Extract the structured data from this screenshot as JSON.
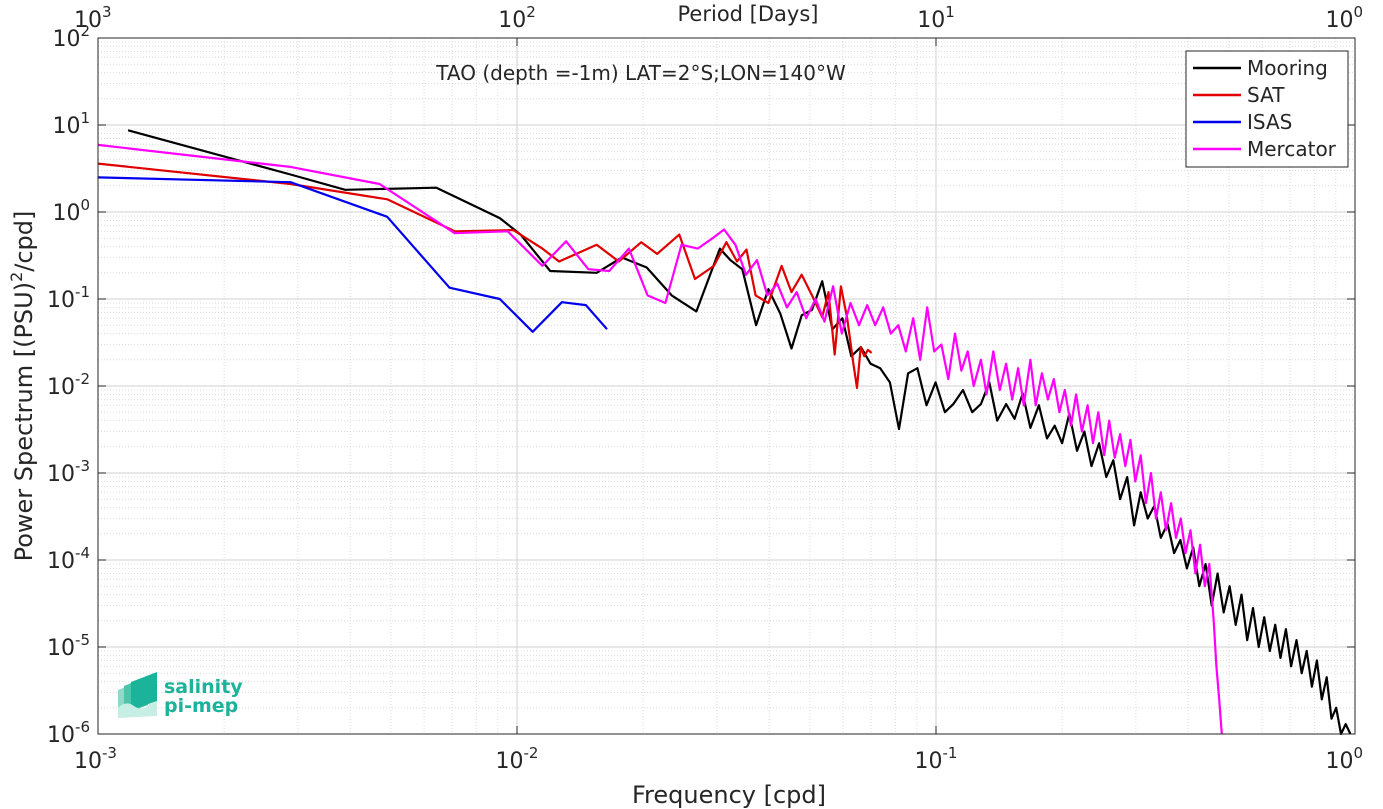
{
  "chart_data": {
    "type": "line",
    "title": "TAO (depth =-1m) LAT=2°S;LON=140°W",
    "xlabel": "Frequency [cpd]",
    "ylabel": "Power Spectrum [(PSU)²/cpd]",
    "ylabel_parts": {
      "pre": "Power Spectrum [(PSU)",
      "sup": "2",
      "post": "/cpd]"
    },
    "top_xlabel": "Period [Days]",
    "xscale": "log",
    "yscale": "log",
    "xlim": [
      0.001,
      1
    ],
    "ylim": [
      1e-06,
      100
    ],
    "grid": true,
    "legend_position": "top-right",
    "x_ticks": [
      {
        "value": 0.001,
        "base": "10",
        "exp": "-3"
      },
      {
        "value": 0.01,
        "base": "10",
        "exp": "-2"
      },
      {
        "value": 0.1,
        "base": "10",
        "exp": "-1"
      },
      {
        "value": 1,
        "base": "10",
        "exp": "0"
      }
    ],
    "top_ticks": [
      {
        "freq": 0.001,
        "base": "10",
        "exp": "3"
      },
      {
        "freq": 0.01,
        "base": "10",
        "exp": "2"
      },
      {
        "freq": 0.1,
        "base": "10",
        "exp": "1"
      },
      {
        "freq": 1,
        "base": "10",
        "exp": "0"
      }
    ],
    "y_ticks": [
      {
        "value": 100,
        "base": "10",
        "exp": "2"
      },
      {
        "value": 10,
        "base": "10",
        "exp": "1"
      },
      {
        "value": 1,
        "base": "10",
        "exp": "0"
      },
      {
        "value": 0.1,
        "base": "10",
        "exp": "-1"
      },
      {
        "value": 0.01,
        "base": "10",
        "exp": "-2"
      },
      {
        "value": 0.001,
        "base": "10",
        "exp": "-3"
      },
      {
        "value": 0.0001,
        "base": "10",
        "exp": "-4"
      },
      {
        "value": 1e-05,
        "base": "10",
        "exp": "-5"
      },
      {
        "value": 1e-06,
        "base": "10",
        "exp": "-6"
      }
    ],
    "series": [
      {
        "name": "Mooring",
        "color": "#000000",
        "points": [
          [
            0.00118,
            8.7
          ],
          [
            0.00288,
            2.7
          ],
          [
            0.00389,
            1.8
          ],
          [
            0.00642,
            1.9
          ],
          [
            0.0091,
            0.85
          ],
          [
            0.0102,
            0.55
          ],
          [
            0.012,
            0.21
          ],
          [
            0.0155,
            0.2
          ],
          [
            0.0178,
            0.3
          ],
          [
            0.0204,
            0.23
          ],
          [
            0.0234,
            0.11
          ],
          [
            0.0268,
            0.072
          ],
          [
            0.0305,
            0.38
          ],
          [
            0.0323,
            0.28
          ],
          [
            0.0345,
            0.22
          ],
          [
            0.0372,
            0.05
          ],
          [
            0.0398,
            0.13
          ],
          [
            0.0425,
            0.068
          ],
          [
            0.0452,
            0.027
          ],
          [
            0.0478,
            0.065
          ],
          [
            0.0506,
            0.075
          ],
          [
            0.0535,
            0.16
          ],
          [
            0.0566,
            0.045
          ],
          [
            0.0598,
            0.06
          ],
          [
            0.0628,
            0.022
          ],
          [
            0.0662,
            0.028
          ],
          [
            0.0698,
            0.018
          ],
          [
            0.0736,
            0.016
          ],
          [
            0.0776,
            0.011
          ],
          [
            0.0816,
            0.0032
          ],
          [
            0.0858,
            0.014
          ],
          [
            0.0903,
            0.016
          ],
          [
            0.0949,
            0.006
          ],
          [
            0.0998,
            0.011
          ],
          [
            0.105,
            0.005
          ],
          [
            0.11,
            0.0062
          ],
          [
            0.116,
            0.009
          ],
          [
            0.122,
            0.005
          ],
          [
            0.128,
            0.0062
          ],
          [
            0.134,
            0.011
          ],
          [
            0.14,
            0.004
          ],
          [
            0.147,
            0.0062
          ],
          [
            0.154,
            0.0042
          ],
          [
            0.161,
            0.0082
          ],
          [
            0.168,
            0.0033
          ],
          [
            0.176,
            0.006
          ],
          [
            0.184,
            0.0025
          ],
          [
            0.192,
            0.0035
          ],
          [
            0.2,
            0.0022
          ],
          [
            0.208,
            0.0048
          ],
          [
            0.217,
            0.0018
          ],
          [
            0.226,
            0.003
          ],
          [
            0.235,
            0.0012
          ],
          [
            0.245,
            0.0022
          ],
          [
            0.255,
            0.0009
          ],
          [
            0.265,
            0.0014
          ],
          [
            0.275,
            0.0005
          ],
          [
            0.286,
            0.0009
          ],
          [
            0.297,
            0.00025
          ],
          [
            0.308,
            0.0006
          ],
          [
            0.32,
            0.0003
          ],
          [
            0.332,
            0.00042
          ],
          [
            0.344,
            0.00018
          ],
          [
            0.357,
            0.00026
          ],
          [
            0.37,
            0.00012
          ],
          [
            0.383,
            0.00017
          ],
          [
            0.397,
            8e-05
          ],
          [
            0.411,
            0.00014
          ],
          [
            0.425,
            5e-05
          ],
          [
            0.44,
            9e-05
          ],
          [
            0.455,
            3e-05
          ],
          [
            0.47,
            7e-05
          ],
          [
            0.486,
            2.5e-05
          ],
          [
            0.502,
            5e-05
          ],
          [
            0.519,
            1.8e-05
          ],
          [
            0.536,
            4e-05
          ],
          [
            0.553,
            1.2e-05
          ],
          [
            0.571,
            2.8e-05
          ],
          [
            0.589,
            1e-05
          ],
          [
            0.607,
            2.2e-05
          ],
          [
            0.626,
            9e-06
          ],
          [
            0.645,
            1.8e-05
          ],
          [
            0.664,
            7.5e-06
          ],
          [
            0.684,
            1.6e-05
          ],
          [
            0.704,
            6e-06
          ],
          [
            0.725,
            1.2e-05
          ],
          [
            0.746,
            5e-06
          ],
          [
            0.767,
            9e-06
          ],
          [
            0.789,
            3.5e-06
          ],
          [
            0.811,
            7e-06
          ],
          [
            0.833,
            2.5e-06
          ],
          [
            0.856,
            4.5e-06
          ],
          [
            0.879,
            1.5e-06
          ],
          [
            0.902,
            2e-06
          ],
          [
            0.926,
            1e-06
          ],
          [
            0.95,
            1.3e-06
          ],
          [
            0.975,
            1e-06
          ]
        ]
      },
      {
        "name": "SAT",
        "color": "#e00000",
        "points": [
          [
            0.001,
            3.6
          ],
          [
            0.00288,
            2.1
          ],
          [
            0.0049,
            1.4
          ],
          [
            0.0071,
            0.6
          ],
          [
            0.0098,
            0.62
          ],
          [
            0.0115,
            0.38
          ],
          [
            0.0126,
            0.27
          ],
          [
            0.0155,
            0.42
          ],
          [
            0.0175,
            0.27
          ],
          [
            0.0198,
            0.45
          ],
          [
            0.0216,
            0.33
          ],
          [
            0.0244,
            0.55
          ],
          [
            0.0266,
            0.17
          ],
          [
            0.0295,
            0.24
          ],
          [
            0.0316,
            0.45
          ],
          [
            0.0335,
            0.27
          ],
          [
            0.0353,
            0.37
          ],
          [
            0.0371,
            0.11
          ],
          [
            0.0398,
            0.09
          ],
          [
            0.0428,
            0.24
          ],
          [
            0.0452,
            0.12
          ],
          [
            0.0478,
            0.19
          ],
          [
            0.0506,
            0.11
          ],
          [
            0.0535,
            0.062
          ],
          [
            0.0554,
            0.12
          ],
          [
            0.0573,
            0.023
          ],
          [
            0.0593,
            0.14
          ],
          [
            0.0614,
            0.06
          ],
          [
            0.0635,
            0.018
          ],
          [
            0.0648,
            0.0095
          ],
          [
            0.0661,
            0.028
          ],
          [
            0.0674,
            0.022
          ],
          [
            0.0688,
            0.026
          ],
          [
            0.0702,
            0.024
          ]
        ]
      },
      {
        "name": "ISAS",
        "color": "#0000ee",
        "points": [
          [
            0.001,
            2.5
          ],
          [
            0.00288,
            2.2
          ],
          [
            0.0049,
            0.88
          ],
          [
            0.0069,
            0.135
          ],
          [
            0.0091,
            0.1
          ],
          [
            0.0109,
            0.042
          ],
          [
            0.0128,
            0.092
          ],
          [
            0.0146,
            0.085
          ],
          [
            0.0164,
            0.045
          ]
        ]
      },
      {
        "name": "Mercator",
        "color": "#ff00ff",
        "points": [
          [
            0.001,
            5.9
          ],
          [
            0.00288,
            3.3
          ],
          [
            0.0047,
            2.1
          ],
          [
            0.0071,
            0.57
          ],
          [
            0.0095,
            0.6
          ],
          [
            0.0115,
            0.24
          ],
          [
            0.0131,
            0.46
          ],
          [
            0.0148,
            0.22
          ],
          [
            0.0166,
            0.21
          ],
          [
            0.0185,
            0.38
          ],
          [
            0.0205,
            0.11
          ],
          [
            0.0226,
            0.09
          ],
          [
            0.0247,
            0.42
          ],
          [
            0.027,
            0.38
          ],
          [
            0.0293,
            0.5
          ],
          [
            0.0312,
            0.63
          ],
          [
            0.0332,
            0.42
          ],
          [
            0.0352,
            0.19
          ],
          [
            0.0374,
            0.28
          ],
          [
            0.0396,
            0.11
          ],
          [
            0.0418,
            0.15
          ],
          [
            0.0441,
            0.08
          ],
          [
            0.0465,
            0.12
          ],
          [
            0.049,
            0.06
          ],
          [
            0.0516,
            0.1
          ],
          [
            0.0542,
            0.055
          ],
          [
            0.0568,
            0.14
          ],
          [
            0.0596,
            0.04
          ],
          [
            0.0625,
            0.09
          ],
          [
            0.0655,
            0.05
          ],
          [
            0.0685,
            0.085
          ],
          [
            0.0716,
            0.05
          ],
          [
            0.0748,
            0.08
          ],
          [
            0.078,
            0.04
          ],
          [
            0.0813,
            0.05
          ],
          [
            0.0847,
            0.025
          ],
          [
            0.0882,
            0.06
          ],
          [
            0.0917,
            0.02
          ],
          [
            0.0953,
            0.08
          ],
          [
            0.099,
            0.025
          ],
          [
            0.103,
            0.03
          ],
          [
            0.107,
            0.012
          ],
          [
            0.111,
            0.04
          ],
          [
            0.115,
            0.015
          ],
          [
            0.119,
            0.025
          ],
          [
            0.123,
            0.01
          ],
          [
            0.128,
            0.02
          ],
          [
            0.132,
            0.008
          ],
          [
            0.137,
            0.025
          ],
          [
            0.142,
            0.009
          ],
          [
            0.147,
            0.018
          ],
          [
            0.152,
            0.007
          ],
          [
            0.157,
            0.016
          ],
          [
            0.162,
            0.006
          ],
          [
            0.168,
            0.02
          ],
          [
            0.173,
            0.006
          ],
          [
            0.179,
            0.014
          ],
          [
            0.185,
            0.007
          ],
          [
            0.191,
            0.012
          ],
          [
            0.197,
            0.005
          ],
          [
            0.203,
            0.009
          ],
          [
            0.21,
            0.0035
          ],
          [
            0.216,
            0.008
          ],
          [
            0.223,
            0.003
          ],
          [
            0.23,
            0.006
          ],
          [
            0.237,
            0.0022
          ],
          [
            0.244,
            0.005
          ],
          [
            0.252,
            0.0016
          ],
          [
            0.259,
            0.004
          ],
          [
            0.267,
            0.0015
          ],
          [
            0.275,
            0.0028
          ],
          [
            0.283,
            0.0012
          ],
          [
            0.291,
            0.0024
          ],
          [
            0.299,
            0.0008
          ],
          [
            0.308,
            0.0016
          ],
          [
            0.317,
            0.00045
          ],
          [
            0.326,
            0.001
          ],
          [
            0.335,
            0.0003
          ],
          [
            0.344,
            0.0006
          ],
          [
            0.354,
            0.00022
          ],
          [
            0.364,
            0.00045
          ],
          [
            0.374,
            0.00018
          ],
          [
            0.384,
            0.0003
          ],
          [
            0.394,
            0.00012
          ],
          [
            0.405,
            0.00022
          ],
          [
            0.416,
            7e-05
          ],
          [
            0.427,
            0.00015
          ],
          [
            0.438,
            5e-05
          ],
          [
            0.449,
            9e-05
          ],
          [
            0.46,
            2e-05
          ],
          [
            0.467,
            6e-06
          ],
          [
            0.474,
            2.5e-06
          ],
          [
            0.481,
            1e-06
          ]
        ]
      }
    ]
  },
  "logo": {
    "line1": "salinity",
    "line2": "pi-mep",
    "color": "#1bb39a"
  }
}
